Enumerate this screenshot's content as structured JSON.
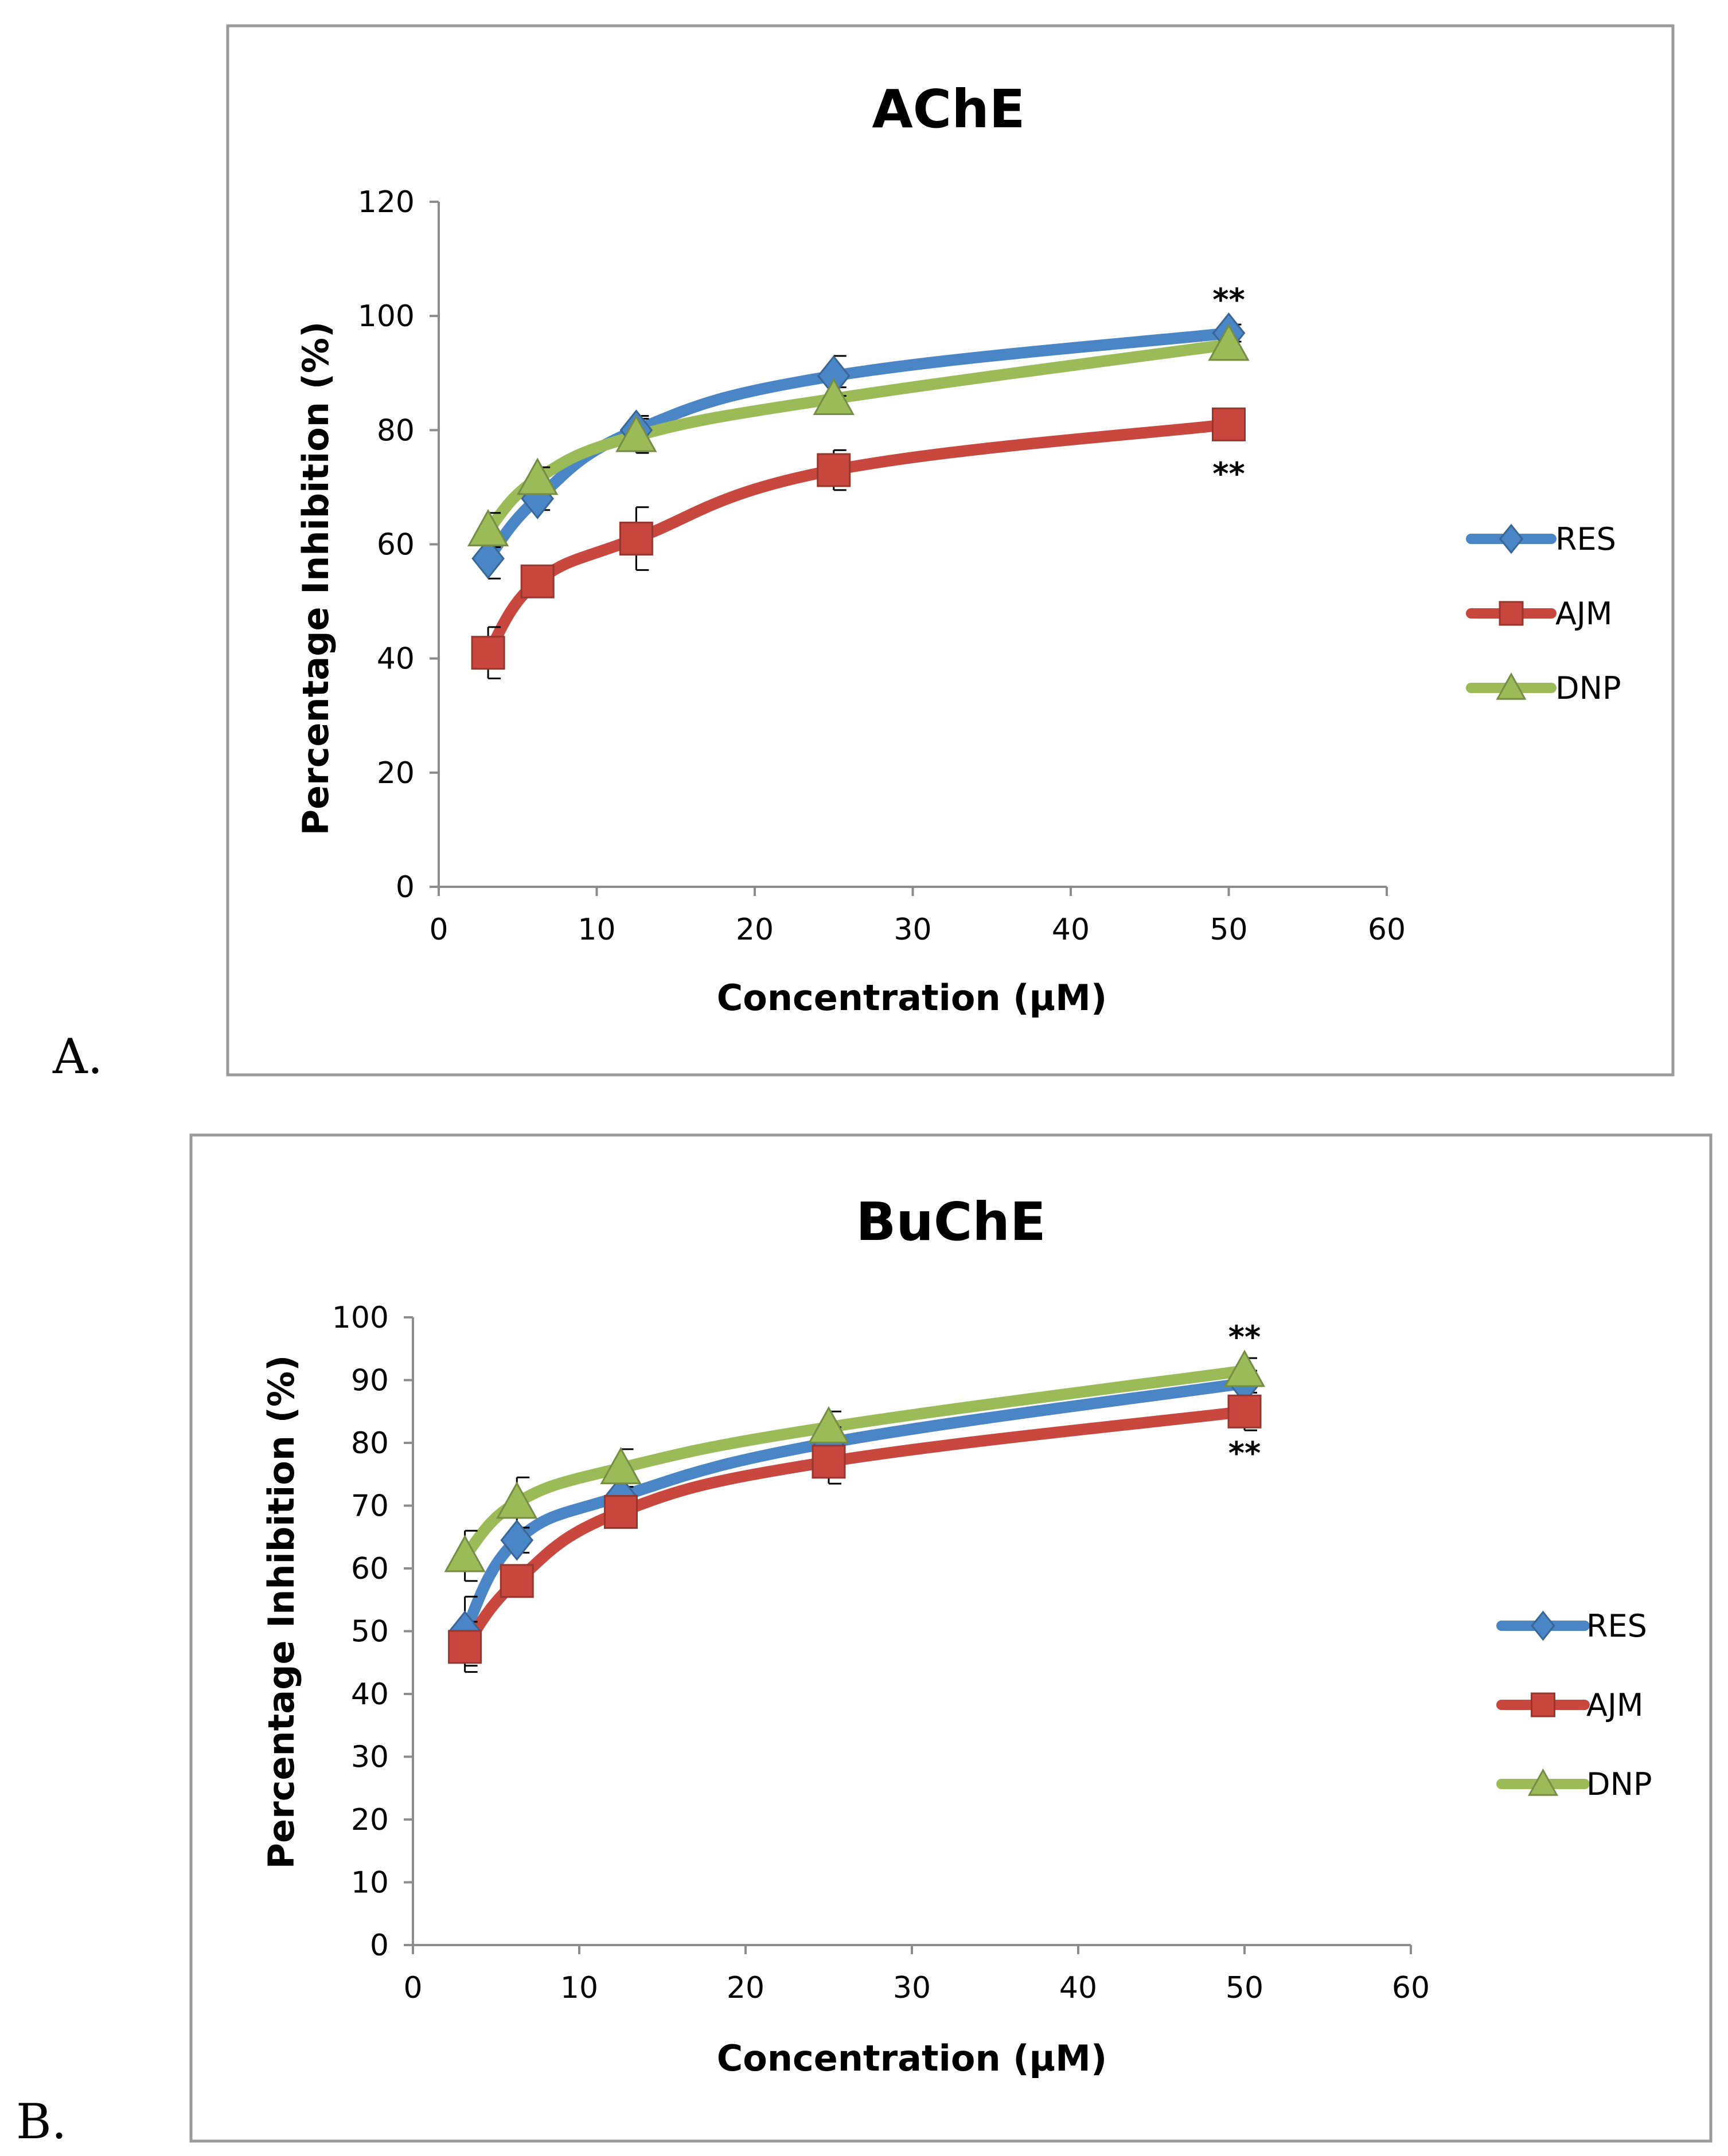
{
  "chart_data": [
    {
      "panel_label": "A.",
      "type": "line",
      "title": "AChE",
      "xlabel": "Concentration (µM)",
      "ylabel": "Percentage Inhibition (%)",
      "xlim": [
        0,
        60
      ],
      "ylim": [
        0,
        120
      ],
      "xticks": [
        0,
        10,
        20,
        30,
        40,
        50,
        60
      ],
      "yticks": [
        0,
        20,
        40,
        60,
        80,
        100,
        120
      ],
      "legend_position": "right",
      "x": [
        3.125,
        6.25,
        12.5,
        25,
        50
      ],
      "series": [
        {
          "name": "RES",
          "color": "#4A86C5",
          "marker": "diamond",
          "values": [
            57.5,
            68,
            80,
            89.5,
            97
          ],
          "errors": [
            3.5,
            2,
            2.5,
            3.5,
            1.5
          ]
        },
        {
          "name": "AJM",
          "color": "#C8483F",
          "marker": "square",
          "values": [
            41,
            53.5,
            61,
            73,
            81
          ],
          "errors": [
            4.5,
            1.5,
            5.5,
            3.5,
            1.5
          ]
        },
        {
          "name": "DNP",
          "color": "#9BBB59",
          "marker": "triangle",
          "values": [
            62.5,
            71.5,
            79,
            85.5,
            95
          ],
          "errors": [
            3,
            2,
            3,
            2,
            2
          ]
        }
      ],
      "annotations": [
        {
          "text": "**",
          "x": 50,
          "y": 103
        },
        {
          "text": "**",
          "x": 50,
          "y": 72.5
        }
      ]
    },
    {
      "panel_label": "B.",
      "type": "line",
      "title": "BuChE",
      "xlabel": "Concentration (µM)",
      "ylabel": "Percentage Inhibition (%)",
      "xlim": [
        0,
        60
      ],
      "ylim": [
        0,
        100
      ],
      "xticks": [
        0,
        10,
        20,
        30,
        40,
        50,
        60
      ],
      "yticks": [
        0,
        10,
        20,
        30,
        40,
        50,
        60,
        70,
        80,
        90,
        100
      ],
      "legend_position": "right",
      "x": [
        3.125,
        6.25,
        12.5,
        25,
        50
      ],
      "series": [
        {
          "name": "RES",
          "color": "#4A86C5",
          "marker": "diamond",
          "values": [
            50,
            64.5,
            71.5,
            80,
            89.5
          ],
          "errors": [
            5.5,
            2,
            2.5,
            2.5,
            2
          ]
        },
        {
          "name": "AJM",
          "color": "#C8483F",
          "marker": "square",
          "values": [
            47.5,
            58,
            69,
            77,
            85
          ],
          "errors": [
            4,
            2,
            2,
            3.5,
            3
          ]
        },
        {
          "name": "DNP",
          "color": "#9BBB59",
          "marker": "triangle",
          "values": [
            62,
            70.5,
            76,
            82.5,
            91.5
          ],
          "errors": [
            4,
            4,
            3,
            2.5,
            2
          ]
        }
      ],
      "annotations": [
        {
          "text": "**",
          "x": 50,
          "y": 97
        },
        {
          "text": "**",
          "x": 50,
          "y": 78.5
        }
      ]
    }
  ]
}
